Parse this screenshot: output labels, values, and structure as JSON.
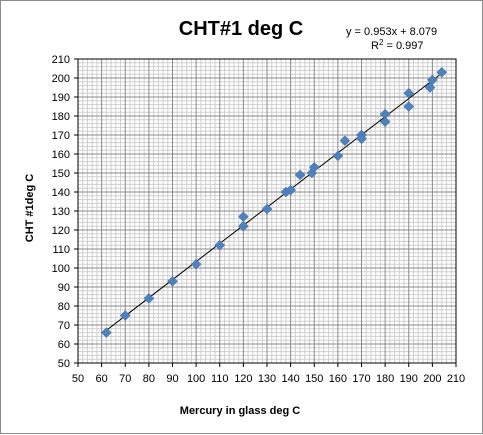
{
  "chart_data": {
    "type": "scatter",
    "title": "CHT#1 deg C",
    "xlabel": "Mercury in glass  deg C",
    "ylabel": "CHT #1deg C",
    "xlim": [
      50,
      210
    ],
    "ylim": [
      50,
      210
    ],
    "x_ticks": [
      50,
      60,
      70,
      80,
      90,
      100,
      110,
      120,
      130,
      140,
      150,
      160,
      170,
      180,
      190,
      200,
      210
    ],
    "y_ticks": [
      50,
      60,
      70,
      80,
      90,
      100,
      110,
      120,
      130,
      140,
      150,
      160,
      170,
      180,
      190,
      200,
      210
    ],
    "grid": true,
    "minor_grid_step": 2,
    "marker_color": "#4f81bd",
    "trendline_color": "#000000",
    "trendline": {
      "slope": 0.953,
      "intercept": 8.079,
      "equation_text": "y = 0.953x + 8.079",
      "r2_label": "R",
      "r2_exp": "2",
      "r2_value": " = 0.997",
      "x_range": [
        62,
        204
      ]
    },
    "points": [
      {
        "x": 62,
        "y": 66
      },
      {
        "x": 70,
        "y": 75
      },
      {
        "x": 80,
        "y": 84
      },
      {
        "x": 90,
        "y": 93
      },
      {
        "x": 100,
        "y": 102
      },
      {
        "x": 110,
        "y": 112
      },
      {
        "x": 120,
        "y": 127
      },
      {
        "x": 120,
        "y": 122
      },
      {
        "x": 130,
        "y": 131
      },
      {
        "x": 138,
        "y": 140
      },
      {
        "x": 140,
        "y": 141
      },
      {
        "x": 144,
        "y": 149
      },
      {
        "x": 149,
        "y": 150
      },
      {
        "x": 150,
        "y": 153
      },
      {
        "x": 160,
        "y": 159
      },
      {
        "x": 163,
        "y": 167
      },
      {
        "x": 170,
        "y": 170
      },
      {
        "x": 170,
        "y": 168
      },
      {
        "x": 180,
        "y": 181
      },
      {
        "x": 180,
        "y": 177
      },
      {
        "x": 190,
        "y": 192
      },
      {
        "x": 190,
        "y": 185
      },
      {
        "x": 199,
        "y": 195
      },
      {
        "x": 200,
        "y": 199
      },
      {
        "x": 204,
        "y": 203
      }
    ]
  }
}
